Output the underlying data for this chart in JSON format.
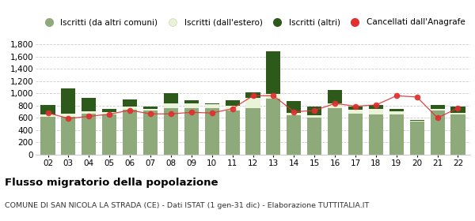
{
  "years": [
    "02",
    "03",
    "04",
    "05",
    "06",
    "07",
    "08",
    "09",
    "10",
    "11",
    "12",
    "13",
    "14",
    "15",
    "16",
    "17",
    "18",
    "19",
    "20",
    "21",
    "22"
  ],
  "iscritti_comuni": [
    620,
    620,
    670,
    660,
    730,
    720,
    760,
    760,
    760,
    720,
    760,
    910,
    640,
    610,
    760,
    670,
    660,
    660,
    540,
    720,
    650
  ],
  "iscritti_estero": [
    30,
    50,
    40,
    30,
    60,
    30,
    80,
    70,
    60,
    80,
    160,
    80,
    40,
    30,
    70,
    60,
    80,
    50,
    15,
    30,
    30
  ],
  "iscritti_altri": [
    155,
    410,
    220,
    50,
    110,
    30,
    160,
    60,
    20,
    90,
    100,
    690,
    200,
    150,
    220,
    60,
    70,
    40,
    15,
    55,
    100
  ],
  "cancellati": [
    680,
    590,
    625,
    660,
    725,
    665,
    665,
    690,
    680,
    750,
    960,
    960,
    700,
    720,
    835,
    790,
    810,
    960,
    940,
    600,
    760
  ],
  "color_comuni": "#8faa7a",
  "color_estero": "#eaf2d8",
  "color_altri": "#2d5a1b",
  "color_cancellati": "#e03030",
  "background_color": "#ffffff",
  "grid_color": "#cccccc",
  "ylim": [
    0,
    1800
  ],
  "yticks": [
    0,
    200,
    400,
    600,
    800,
    1000,
    1200,
    1400,
    1600,
    1800
  ],
  "title": "Flusso migratorio della popolazione",
  "subtitle": "COMUNE DI SAN NICOLA LA STRADA (CE) - Dati ISTAT (1 gen-31 dic) - Elaborazione TUTTITALIA.IT",
  "legend_labels": [
    "Iscritti (da altri comuni)",
    "Iscritti (dall'estero)",
    "Iscritti (altri)",
    "Cancellati dall'Anagrafe"
  ]
}
